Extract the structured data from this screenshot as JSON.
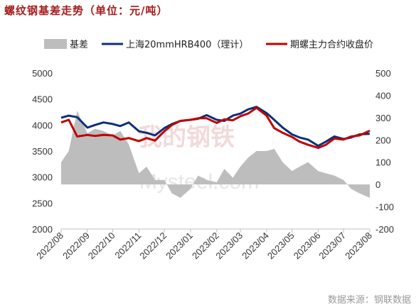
{
  "title": "螺纹钢基差走势（单位：元/吨）",
  "source": "数据来源：钢联数据",
  "watermark": {
    "logo_text": "我的钢铁",
    "site_text": "Mysteel.com"
  },
  "colors": {
    "basis": "#bdbdbd",
    "spot": "#0c2f7a",
    "futures": "#c00000",
    "title": "#a61b1b",
    "axis": "#bfbfbf"
  },
  "chart_data": {
    "type": "line",
    "title": "螺纹钢基差走势（单位：元/吨）",
    "legend_position": "top",
    "grid": false,
    "x_range": [
      "2022-08-01",
      "2023-08-01"
    ],
    "x_ticks": [
      "2022/08",
      "2022/09",
      "2022/10",
      "2022/11",
      "2022/12",
      "2023/01",
      "2023/02",
      "2023/03",
      "2023/04",
      "2023/05",
      "2023/06",
      "2023/07",
      "2023/08"
    ],
    "y_left": {
      "range": [
        2000,
        5000
      ],
      "ticks": [
        2000,
        2500,
        3000,
        3500,
        4000,
        4500,
        5000
      ]
    },
    "y_right": {
      "range": [
        -200,
        500
      ],
      "ticks": [
        -200,
        -100,
        0,
        100,
        200,
        300,
        400,
        500
      ]
    },
    "x": [
      "2022-08-01",
      "2022-08-10",
      "2022-08-20",
      "2022-09-01",
      "2022-09-10",
      "2022-09-20",
      "2022-10-01",
      "2022-10-10",
      "2022-10-20",
      "2022-11-01",
      "2022-11-10",
      "2022-11-20",
      "2022-12-01",
      "2022-12-10",
      "2022-12-20",
      "2023-01-01",
      "2023-01-10",
      "2023-01-20",
      "2023-02-01",
      "2023-02-10",
      "2023-02-20",
      "2023-03-01",
      "2023-03-10",
      "2023-03-20",
      "2023-04-01",
      "2023-04-10",
      "2023-04-20",
      "2023-05-01",
      "2023-05-10",
      "2023-05-20",
      "2023-06-01",
      "2023-06-10",
      "2023-06-20",
      "2023-07-01",
      "2023-07-10",
      "2023-07-20",
      "2023-08-01"
    ],
    "series": [
      {
        "name": "基差",
        "type": "area",
        "axis": "right",
        "values": [
          100,
          150,
          330,
          230,
          250,
          240,
          220,
          240,
          180,
          50,
          80,
          20,
          20,
          -40,
          -60,
          -20,
          40,
          20,
          10,
          70,
          30,
          80,
          120,
          150,
          150,
          160,
          100,
          60,
          80,
          100,
          60,
          50,
          40,
          20,
          -20,
          -40,
          -60
        ]
      },
      {
        "name": "上海20mmHRB400（理计）",
        "type": "line",
        "axis": "left",
        "values": [
          4140,
          4180,
          4150,
          3950,
          4000,
          4050,
          4020,
          3980,
          4050,
          3880,
          3850,
          3800,
          3940,
          4020,
          4080,
          4100,
          4120,
          4190,
          4100,
          4080,
          4180,
          4220,
          4300,
          4350,
          4230,
          4100,
          3950,
          3820,
          3760,
          3720,
          3600,
          3680,
          3780,
          3730,
          3760,
          3820,
          3830
        ]
      },
      {
        "name": "期螺主力合约收盘价",
        "type": "line",
        "axis": "left",
        "values": [
          4050,
          4100,
          3780,
          3810,
          3790,
          3810,
          3800,
          3720,
          3750,
          3690,
          3750,
          3700,
          3880,
          4000,
          4080,
          4100,
          4130,
          4130,
          4040,
          4110,
          4090,
          4170,
          4220,
          4330,
          4180,
          3940,
          3850,
          3770,
          3680,
          3620,
          3560,
          3620,
          3740,
          3720,
          3780,
          3800,
          3890
        ]
      }
    ]
  }
}
